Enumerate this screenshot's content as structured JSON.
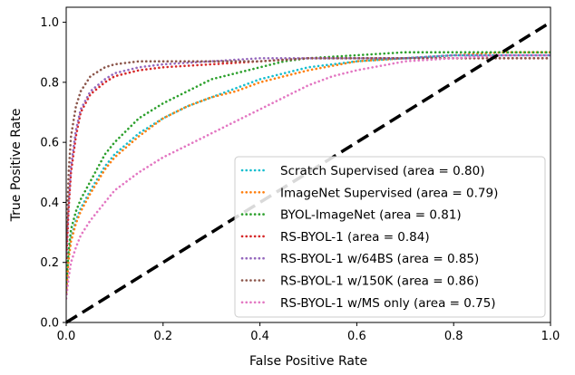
{
  "chart_data": {
    "type": "line",
    "title": "",
    "xlabel": "False Positive Rate",
    "ylabel": "True Positive Rate",
    "xlim": [
      0.0,
      1.0
    ],
    "ylim": [
      0.0,
      1.05
    ],
    "xticks": [
      "0.0",
      "0.2",
      "0.4",
      "0.6",
      "0.8",
      "1.0"
    ],
    "yticks": [
      "0.0",
      "0.2",
      "0.4",
      "0.6",
      "0.8",
      "1.0"
    ],
    "grid": false,
    "legend_position": "lower-right",
    "diagonal": {
      "style": "dashed",
      "color": "#000000",
      "points": [
        [
          0,
          0
        ],
        [
          1,
          1
        ]
      ]
    },
    "series": [
      {
        "name": "Scratch Supervised (area = 0.80)",
        "color": "#17becf",
        "points": [
          [
            0,
            0.1
          ],
          [
            0.005,
            0.22
          ],
          [
            0.01,
            0.28
          ],
          [
            0.02,
            0.34
          ],
          [
            0.03,
            0.38
          ],
          [
            0.05,
            0.44
          ],
          [
            0.08,
            0.52
          ],
          [
            0.1,
            0.56
          ],
          [
            0.15,
            0.63
          ],
          [
            0.2,
            0.68
          ],
          [
            0.25,
            0.72
          ],
          [
            0.3,
            0.75
          ],
          [
            0.35,
            0.78
          ],
          [
            0.4,
            0.81
          ],
          [
            0.45,
            0.83
          ],
          [
            0.5,
            0.85
          ],
          [
            0.6,
            0.87
          ],
          [
            0.7,
            0.88
          ],
          [
            0.8,
            0.89
          ],
          [
            0.9,
            0.89
          ],
          [
            1.0,
            0.89
          ]
        ]
      },
      {
        "name": "ImageNet Supervised (area = 0.79)",
        "color": "#ff7f0e",
        "points": [
          [
            0,
            0.1
          ],
          [
            0.005,
            0.21
          ],
          [
            0.01,
            0.27
          ],
          [
            0.02,
            0.33
          ],
          [
            0.03,
            0.37
          ],
          [
            0.05,
            0.43
          ],
          [
            0.08,
            0.51
          ],
          [
            0.1,
            0.55
          ],
          [
            0.15,
            0.62
          ],
          [
            0.2,
            0.68
          ],
          [
            0.25,
            0.72
          ],
          [
            0.3,
            0.75
          ],
          [
            0.35,
            0.77
          ],
          [
            0.4,
            0.8
          ],
          [
            0.45,
            0.82
          ],
          [
            0.5,
            0.84
          ],
          [
            0.6,
            0.87
          ],
          [
            0.7,
            0.88
          ],
          [
            0.8,
            0.89
          ],
          [
            0.9,
            0.9
          ],
          [
            1.0,
            0.9
          ]
        ]
      },
      {
        "name": "BYOL-ImageNet (area = 0.81)",
        "color": "#2ca02c",
        "points": [
          [
            0,
            0.12
          ],
          [
            0.005,
            0.24
          ],
          [
            0.01,
            0.31
          ],
          [
            0.02,
            0.37
          ],
          [
            0.03,
            0.41
          ],
          [
            0.05,
            0.47
          ],
          [
            0.08,
            0.56
          ],
          [
            0.1,
            0.6
          ],
          [
            0.15,
            0.68
          ],
          [
            0.2,
            0.73
          ],
          [
            0.25,
            0.77
          ],
          [
            0.3,
            0.81
          ],
          [
            0.35,
            0.83
          ],
          [
            0.4,
            0.85
          ],
          [
            0.45,
            0.87
          ],
          [
            0.5,
            0.88
          ],
          [
            0.6,
            0.89
          ],
          [
            0.7,
            0.9
          ],
          [
            0.8,
            0.9
          ],
          [
            0.9,
            0.9
          ],
          [
            1.0,
            0.9
          ]
        ]
      },
      {
        "name": "RS-BYOL-1 (area = 0.84)",
        "color": "#d62728",
        "points": [
          [
            0,
            0.2
          ],
          [
            0.005,
            0.38
          ],
          [
            0.01,
            0.5
          ],
          [
            0.02,
            0.62
          ],
          [
            0.03,
            0.7
          ],
          [
            0.05,
            0.76
          ],
          [
            0.08,
            0.8
          ],
          [
            0.1,
            0.82
          ],
          [
            0.15,
            0.84
          ],
          [
            0.2,
            0.85
          ],
          [
            0.3,
            0.86
          ],
          [
            0.4,
            0.87
          ],
          [
            0.5,
            0.88
          ],
          [
            0.6,
            0.88
          ],
          [
            0.7,
            0.88
          ],
          [
            0.8,
            0.88
          ],
          [
            0.9,
            0.88
          ],
          [
            1.0,
            0.88
          ]
        ]
      },
      {
        "name": "RS-BYOL-1 w/64BS (area = 0.85)",
        "color": "#9467bd",
        "points": [
          [
            0,
            0.22
          ],
          [
            0.005,
            0.4
          ],
          [
            0.01,
            0.52
          ],
          [
            0.02,
            0.64
          ],
          [
            0.03,
            0.71
          ],
          [
            0.05,
            0.77
          ],
          [
            0.08,
            0.81
          ],
          [
            0.1,
            0.83
          ],
          [
            0.15,
            0.85
          ],
          [
            0.2,
            0.86
          ],
          [
            0.3,
            0.87
          ],
          [
            0.4,
            0.88
          ],
          [
            0.5,
            0.88
          ],
          [
            0.6,
            0.88
          ],
          [
            0.7,
            0.88
          ],
          [
            0.8,
            0.89
          ],
          [
            0.9,
            0.89
          ],
          [
            1.0,
            0.89
          ]
        ]
      },
      {
        "name": "RS-BYOL-1 w/150K (area = 0.86)",
        "color": "#8c564b",
        "points": [
          [
            0,
            0.25
          ],
          [
            0.005,
            0.5
          ],
          [
            0.01,
            0.62
          ],
          [
            0.02,
            0.72
          ],
          [
            0.03,
            0.77
          ],
          [
            0.05,
            0.82
          ],
          [
            0.08,
            0.85
          ],
          [
            0.1,
            0.86
          ],
          [
            0.15,
            0.87
          ],
          [
            0.2,
            0.87
          ],
          [
            0.3,
            0.87
          ],
          [
            0.4,
            0.87
          ],
          [
            0.5,
            0.88
          ],
          [
            0.6,
            0.88
          ],
          [
            0.7,
            0.88
          ],
          [
            0.8,
            0.88
          ],
          [
            0.9,
            0.88
          ],
          [
            1.0,
            0.88
          ]
        ]
      },
      {
        "name": "RS-BYOL-1 w/MS only (area = 0.75)",
        "color": "#e377c2",
        "points": [
          [
            0,
            0.08
          ],
          [
            0.005,
            0.15
          ],
          [
            0.01,
            0.2
          ],
          [
            0.02,
            0.25
          ],
          [
            0.03,
            0.29
          ],
          [
            0.05,
            0.34
          ],
          [
            0.08,
            0.4
          ],
          [
            0.1,
            0.44
          ],
          [
            0.15,
            0.5
          ],
          [
            0.2,
            0.55
          ],
          [
            0.25,
            0.59
          ],
          [
            0.3,
            0.63
          ],
          [
            0.35,
            0.67
          ],
          [
            0.4,
            0.71
          ],
          [
            0.45,
            0.75
          ],
          [
            0.5,
            0.79
          ],
          [
            0.55,
            0.82
          ],
          [
            0.6,
            0.84
          ],
          [
            0.7,
            0.87
          ],
          [
            0.8,
            0.88
          ],
          [
            0.9,
            0.89
          ],
          [
            1.0,
            0.89
          ]
        ]
      }
    ]
  }
}
